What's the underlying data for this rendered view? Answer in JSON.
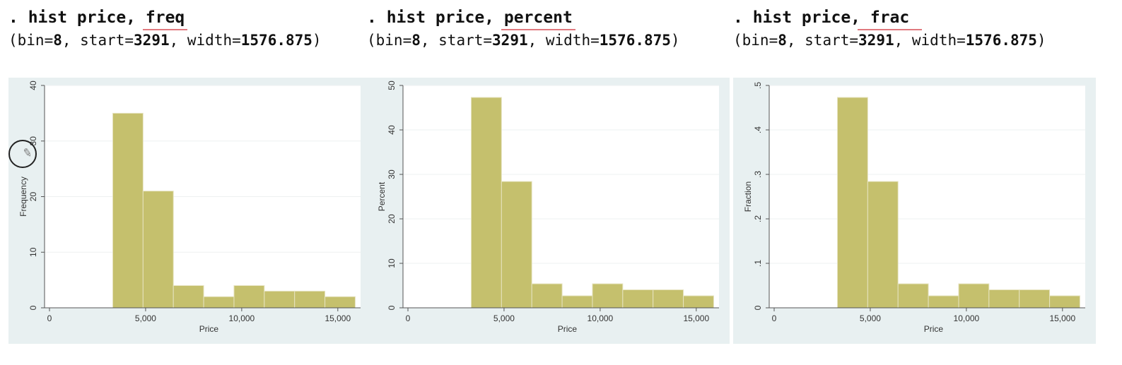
{
  "commands": [
    {
      "prefix": ". hist price, ",
      "option": "freq",
      "params_open": "(bin=",
      "bin": "8",
      "sep1": ", start=",
      "start": "3291",
      "sep2": ", width=",
      "width": "1576.875",
      "params_close": ")"
    },
    {
      "prefix": ". hist price, ",
      "option": "percent",
      "params_open": "(bin=",
      "bin": "8",
      "sep1": ", start=",
      "start": "3291",
      "sep2": ", width=",
      "width": "1576.875",
      "params_close": ")"
    },
    {
      "prefix": ". hist price,",
      "option": " frac ",
      "params_open": "(bin=",
      "bin": "8",
      "sep1": ", start=",
      "start": "3291",
      "sep2": ", width=",
      "width": "1576.875",
      "params_close": ")"
    }
  ],
  "colors": {
    "bar": "#c5c06d",
    "bar_edge": "#e6e3c0",
    "plot_bg": "#ffffff",
    "panel_bg": "#e8f0f1",
    "grid": "#eef1f1"
  },
  "icons": {
    "cursor": "pencil-cursor-icon"
  },
  "chart_data": [
    {
      "type": "bar",
      "xlabel": "Price",
      "ylabel": "Frequency",
      "xlim": [
        0,
        16000
      ],
      "ylim": [
        0,
        40
      ],
      "xticks": [
        0,
        5000,
        10000,
        15000
      ],
      "xtick_labels": [
        "0",
        "5,000",
        "10,000",
        "15,000"
      ],
      "yticks": [
        0,
        10,
        20,
        30,
        40
      ],
      "ytick_labels": [
        "0",
        "10",
        "20",
        "30",
        "40"
      ],
      "grid": true,
      "bin_start": 3291,
      "bin_width": 1576.875,
      "values": [
        35,
        21,
        4,
        2,
        4,
        3,
        3,
        2
      ]
    },
    {
      "type": "bar",
      "xlabel": "Price",
      "ylabel": "Percent",
      "xlim": [
        0,
        16000
      ],
      "ylim": [
        0,
        50
      ],
      "xticks": [
        0,
        5000,
        10000,
        15000
      ],
      "xtick_labels": [
        "0",
        "5,000",
        "10,000",
        "15,000"
      ],
      "yticks": [
        0,
        10,
        20,
        30,
        40,
        50
      ],
      "ytick_labels": [
        "0",
        "10",
        "20",
        "30",
        "40",
        "50"
      ],
      "grid": true,
      "bin_start": 3291,
      "bin_width": 1576.875,
      "values": [
        47.3,
        28.4,
        5.4,
        2.7,
        5.4,
        4.05,
        4.05,
        2.7
      ]
    },
    {
      "type": "bar",
      "xlabel": "Price",
      "ylabel": "Fraction",
      "xlim": [
        0,
        16000
      ],
      "ylim": [
        0,
        0.5
      ],
      "xticks": [
        0,
        5000,
        10000,
        15000
      ],
      "xtick_labels": [
        "0",
        "5,000",
        "10,000",
        "15,000"
      ],
      "yticks": [
        0,
        0.1,
        0.2,
        0.3,
        0.4,
        0.5
      ],
      "ytick_labels": [
        "0",
        ".1",
        ".2",
        ".3",
        ".4",
        ".5"
      ],
      "grid": true,
      "bin_start": 3291,
      "bin_width": 1576.875,
      "values": [
        0.473,
        0.284,
        0.054,
        0.027,
        0.054,
        0.0405,
        0.0405,
        0.027
      ]
    }
  ]
}
